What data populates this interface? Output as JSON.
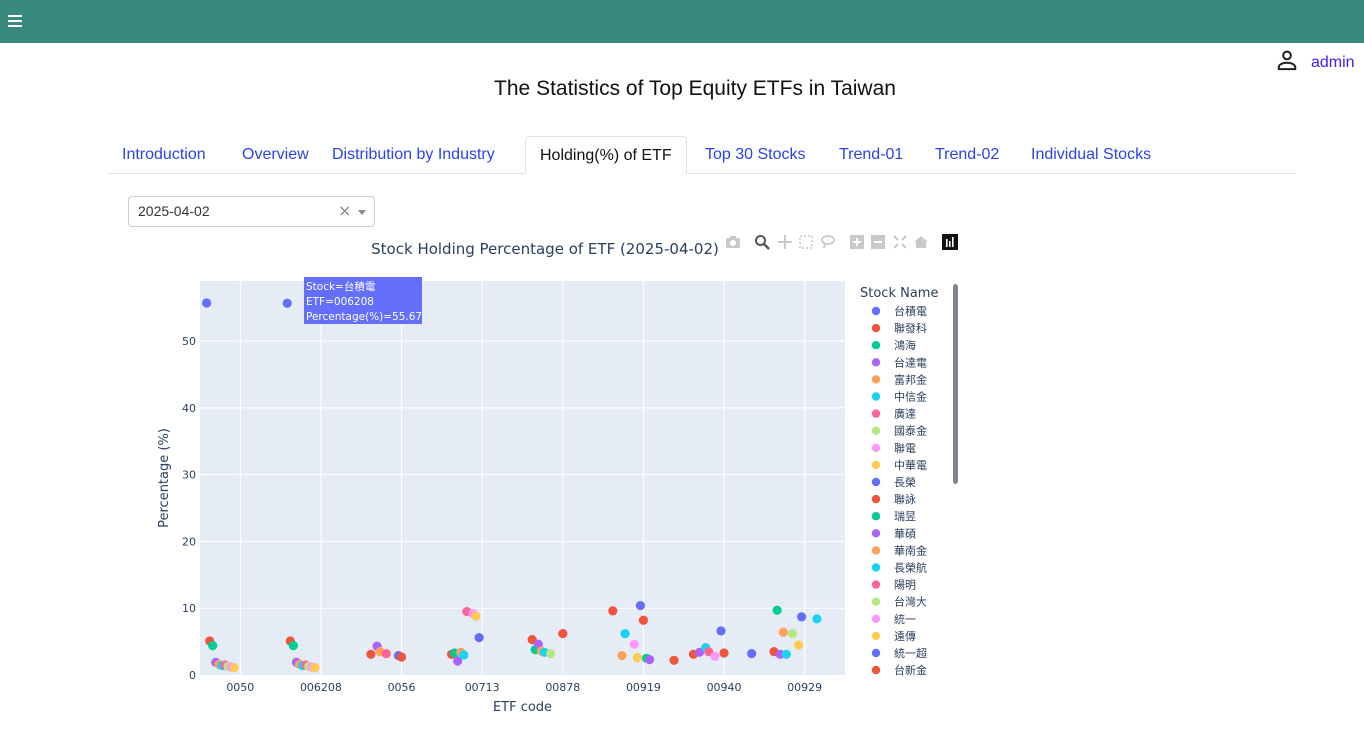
{
  "header": {
    "menu_icon": "hamburger-icon",
    "color": "#388a7e"
  },
  "user": {
    "icon": "person-icon",
    "name": "admin"
  },
  "page": {
    "title": "The Statistics of Top Equity ETFs in Taiwan"
  },
  "tabs": [
    {
      "label": "Introduction",
      "active": false
    },
    {
      "label": "Overview",
      "active": false
    },
    {
      "label": "Distribution by Industry",
      "active": false
    },
    {
      "label": "Holding(%) of ETF",
      "active": true
    },
    {
      "label": "Top 30 Stocks",
      "active": false
    },
    {
      "label": "Trend-01",
      "active": false
    },
    {
      "label": "Trend-02",
      "active": false
    },
    {
      "label": "Individual Stocks",
      "active": false
    }
  ],
  "date_select": {
    "value": "2025-04-02"
  },
  "modebar": [
    "camera-icon",
    "zoom-icon",
    "pan-icon",
    "box-select-icon",
    "lasso-icon",
    "zoom-in-icon",
    "zoom-out-icon",
    "autoscale-icon",
    "reset-axes-icon",
    "plotly-logo-icon"
  ],
  "tooltip": {
    "line1": "Stock=台積電",
    "line2": "ETF=006208",
    "line3": "Percentage(%)=55.67",
    "color": "#636efa"
  },
  "chart_data": {
    "type": "scatter",
    "title": "Stock Holding Percentage of ETF  (2025-04-02)",
    "xlabel": "ETF code",
    "ylabel": "Percentage (%)",
    "legend_title": "Stock Name",
    "legend_position": "right",
    "ylim": [
      0,
      59
    ],
    "yticks": [
      0,
      10,
      20,
      30,
      40,
      50
    ],
    "categories": [
      "0050",
      "006208",
      "0056",
      "00713",
      "00878",
      "00919",
      "00940",
      "00929"
    ],
    "grid": true,
    "series": [
      {
        "name": "台積電",
        "color": "#636efa",
        "points": [
          [
            "0050",
            55.7
          ],
          [
            "006208",
            55.67
          ]
        ]
      },
      {
        "name": "聯發科",
        "color": "#EF553B",
        "points": [
          [
            "0050",
            5.1
          ],
          [
            "006208",
            5.1
          ],
          [
            "0056",
            3.1
          ],
          [
            "00713",
            3.1
          ],
          [
            "00878",
            5.3
          ],
          [
            "00919",
            9.6
          ],
          [
            "00940",
            3.1
          ],
          [
            "00929",
            3.5
          ]
        ]
      },
      {
        "name": "鴻海",
        "color": "#00cc96",
        "points": [
          [
            "0050",
            4.4
          ],
          [
            "006208",
            4.4
          ],
          [
            "00713",
            3.3
          ],
          [
            "00878",
            3.8
          ],
          [
            "00929",
            9.7
          ]
        ]
      },
      {
        "name": "台達電",
        "color": "#ab63fa",
        "points": [
          [
            "0050",
            1.9
          ],
          [
            "006208",
            1.9
          ],
          [
            "0056",
            4.3
          ],
          [
            "00713",
            2.1
          ],
          [
            "00878",
            4.6
          ],
          [
            "00940",
            3.4
          ],
          [
            "00929",
            3.1
          ]
        ]
      },
      {
        "name": "富邦金",
        "color": "#FFA15A",
        "points": [
          [
            "0050",
            1.6
          ],
          [
            "006208",
            1.6
          ],
          [
            "0056",
            3.5
          ],
          [
            "00713",
            3.4
          ],
          [
            "00878",
            3.6
          ],
          [
            "00919",
            2.9
          ],
          [
            "00929",
            6.4
          ]
        ]
      },
      {
        "name": "中信金",
        "color": "#19d3f3",
        "points": [
          [
            "0050",
            1.4
          ],
          [
            "006208",
            1.4
          ],
          [
            "00713",
            3.0
          ],
          [
            "00878",
            3.4
          ],
          [
            "00919",
            6.2
          ],
          [
            "00940",
            4.1
          ],
          [
            "00929",
            3.1
          ]
        ]
      },
      {
        "name": "廣達",
        "color": "#FF6692",
        "points": [
          [
            "0050",
            1.5
          ],
          [
            "006208",
            1.5
          ],
          [
            "0056",
            3.2
          ],
          [
            "00713",
            9.5
          ],
          [
            "00940",
            3.5
          ]
        ]
      },
      {
        "name": "國泰金",
        "color": "#B6E880",
        "points": [
          [
            "0050",
            1.3
          ],
          [
            "006208",
            1.3
          ],
          [
            "00878",
            3.2
          ],
          [
            "00929",
            6.2
          ]
        ]
      },
      {
        "name": "聯電",
        "color": "#FF97FF",
        "points": [
          [
            "0050",
            1.2
          ],
          [
            "006208",
            1.2
          ],
          [
            "00713",
            9.2
          ],
          [
            "00919",
            4.6
          ],
          [
            "00940",
            2.8
          ]
        ]
      },
      {
        "name": "中華電",
        "color": "#FECB52",
        "points": [
          [
            "0050",
            1.1
          ],
          [
            "006208",
            1.1
          ],
          [
            "00713",
            8.8
          ],
          [
            "00919",
            2.6
          ],
          [
            "00929",
            4.5
          ]
        ]
      },
      {
        "name": "長榮",
        "color": "#636efa",
        "points": [
          [
            "0056",
            2.9
          ],
          [
            "00713",
            5.6
          ],
          [
            "00919",
            10.4
          ],
          [
            "00940",
            6.6
          ],
          [
            "00929",
            8.7
          ]
        ]
      },
      {
        "name": "聯詠",
        "color": "#EF553B",
        "points": [
          [
            "0056",
            2.7
          ],
          [
            "00878",
            6.2
          ],
          [
            "00919",
            8.2
          ],
          [
            "00940",
            3.3
          ]
        ]
      },
      {
        "name": "瑞昱",
        "color": "#00cc96",
        "points": [
          [
            "00919",
            2.5
          ]
        ]
      },
      {
        "name": "華碩",
        "color": "#ab63fa",
        "points": [
          [
            "00919",
            2.3
          ]
        ]
      },
      {
        "name": "華南金",
        "color": "#FFA15A",
        "points": []
      },
      {
        "name": "長榮航",
        "color": "#19d3f3",
        "points": [
          [
            "00929",
            8.4
          ]
        ]
      },
      {
        "name": "陽明",
        "color": "#FF6692",
        "points": []
      },
      {
        "name": "台灣大",
        "color": "#B6E880",
        "points": []
      },
      {
        "name": "統一",
        "color": "#FF97FF",
        "points": []
      },
      {
        "name": "遠傳",
        "color": "#FECB52",
        "points": []
      },
      {
        "name": "統一超",
        "color": "#636efa",
        "points": [
          [
            "00940",
            3.2
          ]
        ]
      },
      {
        "name": "台新金",
        "color": "#EF553B",
        "points": [
          [
            "00919",
            2.2
          ]
        ]
      }
    ]
  }
}
